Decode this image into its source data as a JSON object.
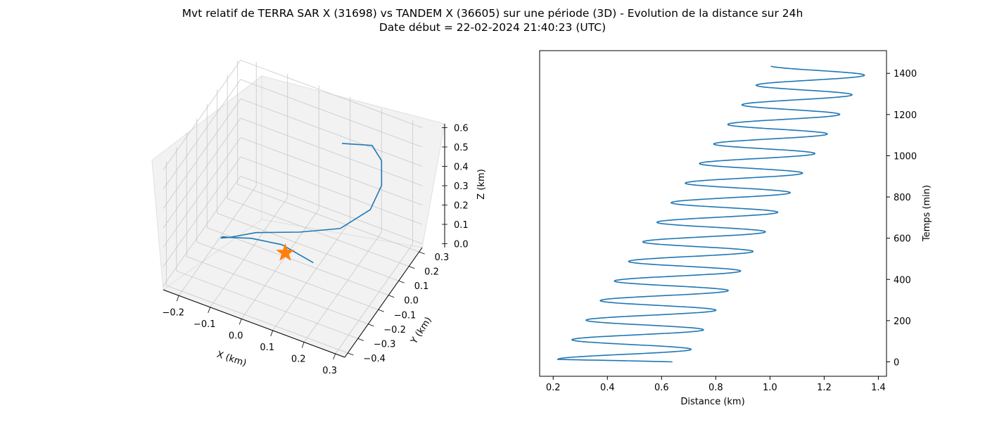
{
  "figure": {
    "title_line1": "Mvt relatif de TERRA SAR X (31698) vs TANDEM X (36605) sur une période (3D) - Evolution de la distance sur 24h",
    "title_line2": "Date début = 22-02-2024 21:40:23 (UTC)"
  },
  "colors": {
    "series": "#1f77b4",
    "marker": "#ff7f0e",
    "pane": "#f2f2f2",
    "grid": "#c8c8c8"
  },
  "chart_data": [
    {
      "type": "line3d",
      "title": "",
      "xlabel": "X (km)",
      "ylabel": "Y (km)",
      "zlabel": "Z (km)",
      "xticks": [
        "−0.2",
        "−0.1",
        "0.0",
        "0.1",
        "0.2",
        "0.3"
      ],
      "yticks": [
        "−0.4",
        "−0.3",
        "−0.2",
        "−0.1",
        "0.0",
        "0.1",
        "0.2",
        "0.3"
      ],
      "zticks": [
        "0.0",
        "0.1",
        "0.2",
        "0.3",
        "0.4",
        "0.5",
        "0.6"
      ],
      "xlim": [
        -0.25,
        0.33
      ],
      "ylim": [
        -0.43,
        0.33
      ],
      "zlim": [
        -0.02,
        0.62
      ],
      "grid": true,
      "series": [
        {
          "points": [
            [
              0.22,
              -0.4,
              0.38
            ],
            [
              0.08,
              -0.28,
              0.3
            ],
            [
              -0.05,
              -0.18,
              0.18
            ],
            [
              -0.14,
              -0.1,
              0.07
            ],
            [
              -0.18,
              -0.06,
              0.02
            ],
            [
              -0.19,
              -0.05,
              0.0
            ],
            [
              -0.17,
              -0.03,
              0.0
            ],
            [
              -0.1,
              0.02,
              0.03
            ],
            [
              0.02,
              0.08,
              0.06
            ],
            [
              0.13,
              0.14,
              0.1
            ],
            [
              0.2,
              0.22,
              0.18
            ],
            [
              0.22,
              0.27,
              0.28
            ],
            [
              0.21,
              0.3,
              0.38
            ],
            [
              0.18,
              0.3,
              0.44
            ],
            [
              0.1,
              0.25,
              0.44
            ]
          ]
        }
      ],
      "marker": {
        "shape": "star",
        "point": [
          0.0,
          0.0,
          0.0
        ]
      }
    },
    {
      "type": "line",
      "title": "",
      "xlabel": "Distance (km)",
      "ylabel": "Temps (min)",
      "xlim": [
        0.15,
        1.43
      ],
      "ylim": [
        -70,
        1510
      ],
      "xticks": [
        0.2,
        0.4,
        0.6,
        0.8,
        1.0,
        1.2,
        1.4
      ],
      "yticks": [
        0,
        200,
        400,
        600,
        800,
        1000,
        1200,
        1400
      ],
      "ytick_side": "right",
      "grid": false,
      "oscillation": {
        "period_min": 95,
        "start_min": 0,
        "end_min": 1435,
        "start_distance": 0.64,
        "end_distance": 1.3,
        "min_distance_start": 0.21,
        "min_distance_end": 1.0,
        "max_distance_start": 0.68,
        "max_distance_end": 1.37
      }
    }
  ]
}
